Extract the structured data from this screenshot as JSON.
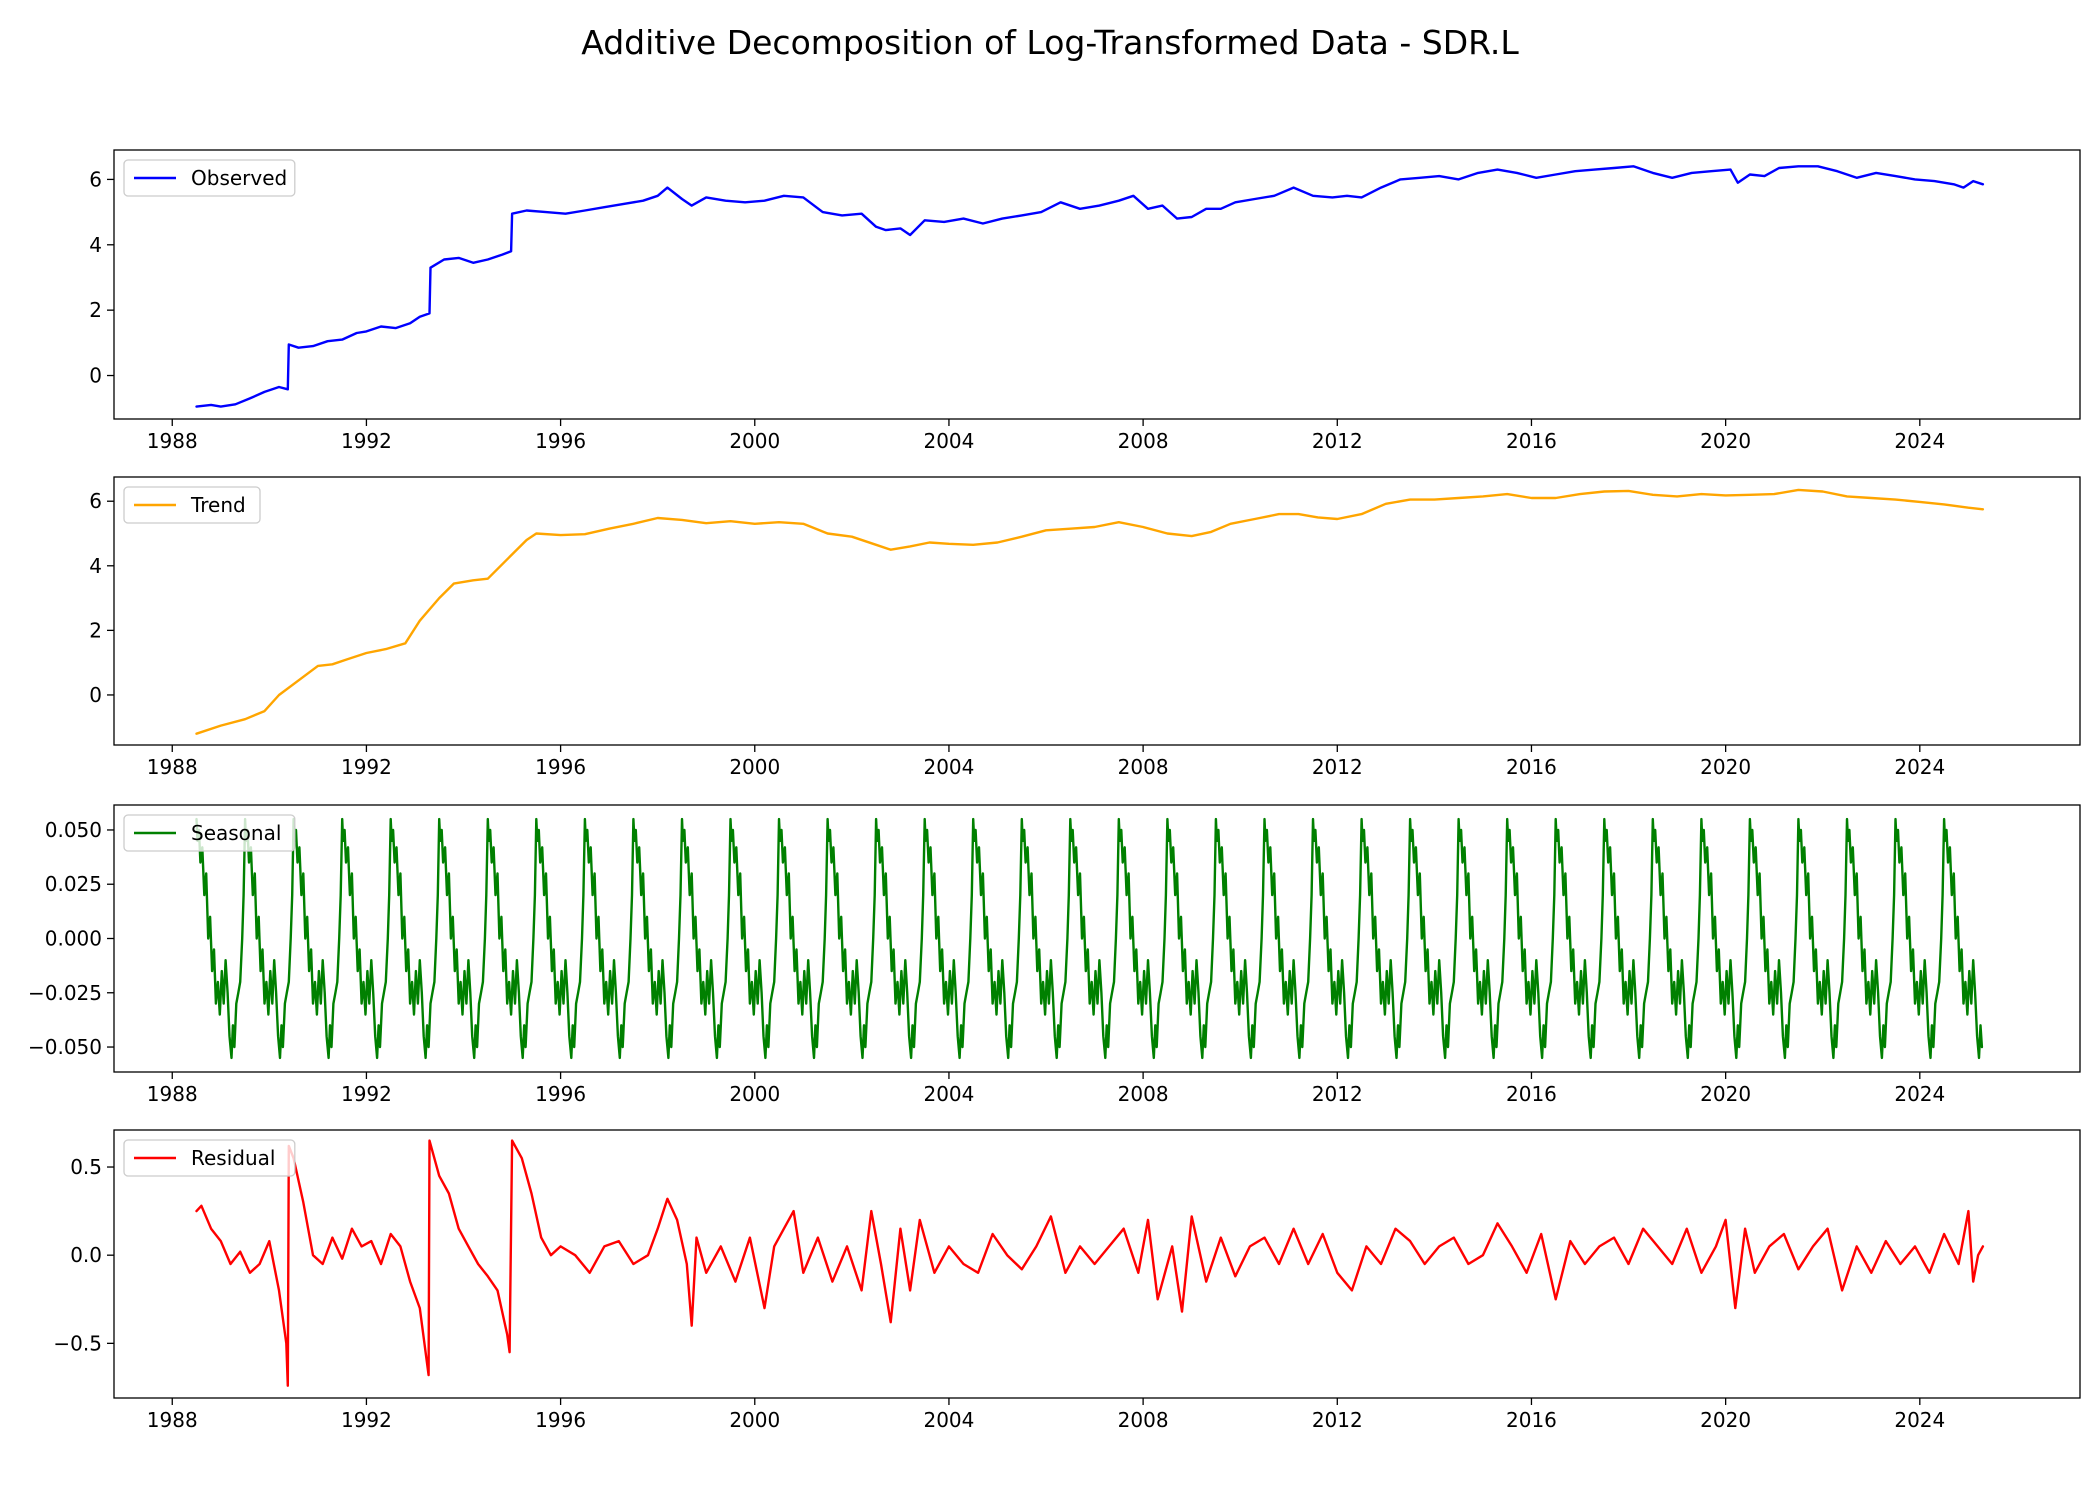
{
  "title": "Additive Decomposition of Log-Transformed Data - SDR.L",
  "chart_data": [
    {
      "type": "line",
      "key": "observed",
      "legend": "Observed",
      "legend_position": "upper left",
      "color": "#0000ff",
      "x_ticks": [
        "1988",
        "1992",
        "1996",
        "2000",
        "2004",
        "2008",
        "2012",
        "2016",
        "2020",
        "2024"
      ],
      "x_tick_values": [
        1988,
        1992,
        1996,
        2000,
        2004,
        2008,
        2012,
        2016,
        2020,
        2024
      ],
      "xlim": [
        1986.8,
        2027.3
      ],
      "y_ticks": [
        "0",
        "2",
        "4",
        "6"
      ],
      "y_tick_values": [
        0,
        2,
        4,
        6
      ],
      "ylim": [
        -1.33,
        6.9
      ],
      "x": [
        1988.5,
        1988.8,
        1989.0,
        1989.3,
        1989.6,
        1989.9,
        1990.2,
        1990.38,
        1990.4,
        1990.6,
        1990.9,
        1991.2,
        1991.5,
        1991.8,
        1992.0,
        1992.3,
        1992.6,
        1992.9,
        1993.1,
        1993.3,
        1993.32,
        1993.6,
        1993.9,
        1994.2,
        1994.5,
        1994.8,
        1994.98,
        1995.0,
        1995.3,
        1995.7,
        1996.1,
        1996.5,
        1996.9,
        1997.3,
        1997.7,
        1998.0,
        1998.2,
        1998.5,
        1998.7,
        1999.0,
        1999.4,
        1999.8,
        2000.2,
        2000.6,
        2001.0,
        2001.4,
        2001.8,
        2002.2,
        2002.5,
        2002.7,
        2003.0,
        2003.2,
        2003.5,
        2003.9,
        2004.3,
        2004.7,
        2005.1,
        2005.5,
        2005.9,
        2006.3,
        2006.7,
        2007.1,
        2007.5,
        2007.8,
        2008.1,
        2008.4,
        2008.7,
        2009.0,
        2009.3,
        2009.6,
        2009.9,
        2010.3,
        2010.7,
        2011.1,
        2011.5,
        2011.9,
        2012.2,
        2012.5,
        2012.9,
        2013.3,
        2013.7,
        2014.1,
        2014.5,
        2014.9,
        2015.3,
        2015.7,
        2016.1,
        2016.5,
        2016.9,
        2017.3,
        2017.7,
        2018.1,
        2018.5,
        2018.9,
        2019.3,
        2019.7,
        2020.1,
        2020.25,
        2020.5,
        2020.8,
        2021.1,
        2021.5,
        2021.9,
        2022.3,
        2022.7,
        2023.1,
        2023.5,
        2023.9,
        2024.3,
        2024.7,
        2024.9,
        2025.1,
        2025.3
      ],
      "y": [
        -0.95,
        -0.9,
        -0.95,
        -0.88,
        -0.7,
        -0.5,
        -0.35,
        -0.42,
        0.95,
        0.85,
        0.9,
        1.05,
        1.1,
        1.3,
        1.35,
        1.5,
        1.45,
        1.6,
        1.8,
        1.9,
        3.3,
        3.55,
        3.6,
        3.45,
        3.55,
        3.7,
        3.8,
        4.95,
        5.05,
        5.0,
        4.95,
        5.05,
        5.15,
        5.25,
        5.35,
        5.5,
        5.75,
        5.4,
        5.2,
        5.45,
        5.35,
        5.3,
        5.35,
        5.5,
        5.45,
        5.0,
        4.9,
        4.95,
        4.55,
        4.45,
        4.5,
        4.3,
        4.75,
        4.7,
        4.8,
        4.65,
        4.8,
        4.9,
        5.0,
        5.3,
        5.1,
        5.2,
        5.35,
        5.5,
        5.1,
        5.2,
        4.8,
        4.85,
        5.1,
        5.1,
        5.3,
        5.4,
        5.5,
        5.75,
        5.5,
        5.45,
        5.5,
        5.45,
        5.75,
        6.0,
        6.05,
        6.1,
        6.0,
        6.2,
        6.3,
        6.2,
        6.05,
        6.15,
        6.25,
        6.3,
        6.35,
        6.4,
        6.2,
        6.05,
        6.2,
        6.25,
        6.3,
        5.9,
        6.15,
        6.1,
        6.35,
        6.4,
        6.4,
        6.25,
        6.05,
        6.2,
        6.1,
        6.0,
        5.95,
        5.85,
        5.75,
        5.95,
        5.85
      ]
    },
    {
      "type": "line",
      "key": "trend",
      "legend": "Trend",
      "legend_position": "upper left",
      "color": "#ffa500",
      "x_ticks": [
        "1988",
        "1992",
        "1996",
        "2000",
        "2004",
        "2008",
        "2012",
        "2016",
        "2020",
        "2024"
      ],
      "x_tick_values": [
        1988,
        1992,
        1996,
        2000,
        2004,
        2008,
        2012,
        2016,
        2020,
        2024
      ],
      "xlim": [
        1986.8,
        2027.3
      ],
      "y_ticks": [
        "0",
        "2",
        "4",
        "6"
      ],
      "y_tick_values": [
        0,
        2,
        4,
        6
      ],
      "ylim": [
        -1.55,
        6.75
      ],
      "x": [
        1988.5,
        1989.0,
        1989.5,
        1989.9,
        1990.2,
        1990.6,
        1991.0,
        1991.3,
        1991.6,
        1992.0,
        1992.4,
        1992.8,
        1993.1,
        1993.5,
        1993.8,
        1994.2,
        1994.5,
        1994.9,
        1995.3,
        1995.5,
        1996.0,
        1996.5,
        1997.0,
        1997.5,
        1998.0,
        1998.5,
        1999.0,
        1999.5,
        2000.0,
        2000.5,
        2001.0,
        2001.5,
        2002.0,
        2002.5,
        2002.8,
        2003.2,
        2003.6,
        2004.0,
        2004.5,
        2005.0,
        2005.5,
        2006.0,
        2006.5,
        2007.0,
        2007.5,
        2008.0,
        2008.5,
        2009.0,
        2009.4,
        2009.8,
        2010.3,
        2010.8,
        2011.2,
        2011.6,
        2012.0,
        2012.5,
        2013.0,
        2013.5,
        2014.0,
        2014.5,
        2015.0,
        2015.5,
        2016.0,
        2016.5,
        2017.0,
        2017.5,
        2018.0,
        2018.5,
        2019.0,
        2019.5,
        2020.0,
        2020.5,
        2021.0,
        2021.5,
        2022.0,
        2022.5,
        2023.0,
        2023.5,
        2024.0,
        2024.5,
        2025.0,
        2025.3
      ],
      "y": [
        -1.2,
        -0.95,
        -0.75,
        -0.5,
        0.0,
        0.45,
        0.9,
        0.95,
        1.1,
        1.3,
        1.42,
        1.6,
        2.3,
        3.0,
        3.45,
        3.55,
        3.6,
        4.2,
        4.8,
        5.0,
        4.95,
        4.98,
        5.15,
        5.3,
        5.48,
        5.42,
        5.32,
        5.38,
        5.3,
        5.35,
        5.3,
        5.0,
        4.9,
        4.65,
        4.5,
        4.6,
        4.72,
        4.68,
        4.65,
        4.72,
        4.9,
        5.1,
        5.15,
        5.2,
        5.35,
        5.2,
        5.0,
        4.92,
        5.05,
        5.3,
        5.45,
        5.6,
        5.6,
        5.5,
        5.45,
        5.6,
        5.92,
        6.05,
        6.05,
        6.1,
        6.15,
        6.22,
        6.1,
        6.1,
        6.22,
        6.3,
        6.32,
        6.2,
        6.15,
        6.22,
        6.18,
        6.2,
        6.22,
        6.35,
        6.3,
        6.15,
        6.1,
        6.05,
        5.98,
        5.9,
        5.8,
        5.75
      ]
    },
    {
      "type": "line",
      "key": "seasonal",
      "legend": "Seasonal",
      "legend_position": "upper left",
      "color": "#008000",
      "x_ticks": [
        "1988",
        "1992",
        "1996",
        "2000",
        "2004",
        "2008",
        "2012",
        "2016",
        "2020",
        "2024"
      ],
      "x_tick_values": [
        1988,
        1992,
        1996,
        2000,
        2004,
        2008,
        2012,
        2016,
        2020,
        2024
      ],
      "xlim": [
        1986.8,
        2027.3
      ],
      "y_ticks": [
        "0.050",
        "0.025",
        "0.000",
        "−0.025",
        "−0.050"
      ],
      "y_tick_values": [
        0.05,
        0.025,
        0.0,
        -0.025,
        -0.05
      ],
      "ylim": [
        -0.0615,
        0.0615
      ],
      "period_years": 1.0,
      "start": 1988.5,
      "end": 2025.3,
      "cycle_phase": [
        0.0,
        0.02,
        0.05,
        0.08,
        0.12,
        0.16,
        0.2,
        0.24,
        0.28,
        0.32,
        0.36,
        0.4,
        0.44,
        0.48,
        0.52,
        0.56,
        0.6,
        0.64,
        0.68,
        0.72,
        0.75,
        0.78,
        0.82,
        0.86,
        0.9,
        0.94,
        0.97,
        1.0
      ],
      "cycle_values": [
        0.055,
        0.045,
        0.05,
        0.035,
        0.042,
        0.02,
        0.03,
        0.0,
        0.01,
        -0.015,
        -0.005,
        -0.03,
        -0.02,
        -0.035,
        -0.015,
        -0.03,
        -0.01,
        -0.025,
        -0.045,
        -0.055,
        -0.04,
        -0.05,
        -0.03,
        -0.025,
        -0.02,
        0.0,
        0.02,
        0.055
      ]
    },
    {
      "type": "line",
      "key": "residual",
      "legend": "Residual",
      "legend_position": "upper left",
      "color": "#ff0000",
      "x_ticks": [
        "1988",
        "1992",
        "1996",
        "2000",
        "2004",
        "2008",
        "2012",
        "2016",
        "2020",
        "2024"
      ],
      "x_tick_values": [
        1988,
        1992,
        1996,
        2000,
        2004,
        2008,
        2012,
        2016,
        2020,
        2024
      ],
      "xlim": [
        1986.8,
        2027.3
      ],
      "y_ticks": [
        "0.5",
        "0.0",
        "−0.5"
      ],
      "y_tick_values": [
        0.5,
        0.0,
        -0.5
      ],
      "ylim": [
        -0.81,
        0.71
      ],
      "x": [
        1988.5,
        1988.6,
        1988.8,
        1989.0,
        1989.2,
        1989.4,
        1989.6,
        1989.8,
        1990.0,
        1990.2,
        1990.35,
        1990.38,
        1990.4,
        1990.5,
        1990.7,
        1990.9,
        1991.1,
        1991.3,
        1991.5,
        1991.7,
        1991.9,
        1992.1,
        1992.3,
        1992.5,
        1992.7,
        1992.9,
        1993.1,
        1993.28,
        1993.3,
        1993.5,
        1993.7,
        1993.9,
        1994.1,
        1994.3,
        1994.5,
        1994.7,
        1994.9,
        1994.95,
        1995.0,
        1995.2,
        1995.4,
        1995.6,
        1995.8,
        1996.0,
        1996.3,
        1996.6,
        1996.9,
        1997.2,
        1997.5,
        1997.8,
        1998.0,
        1998.2,
        1998.4,
        1998.6,
        1998.7,
        1998.8,
        1999.0,
        1999.3,
        1999.6,
        1999.9,
        2000.2,
        2000.4,
        2000.6,
        2000.8,
        2001.0,
        2001.3,
        2001.6,
        2001.9,
        2002.2,
        2002.4,
        2002.6,
        2002.8,
        2003.0,
        2003.2,
        2003.4,
        2003.7,
        2004.0,
        2004.3,
        2004.6,
        2004.9,
        2005.2,
        2005.5,
        2005.8,
        2006.1,
        2006.4,
        2006.7,
        2007.0,
        2007.3,
        2007.6,
        2007.9,
        2008.1,
        2008.3,
        2008.6,
        2008.8,
        2009.0,
        2009.3,
        2009.6,
        2009.9,
        2010.2,
        2010.5,
        2010.8,
        2011.1,
        2011.4,
        2011.7,
        2012.0,
        2012.3,
        2012.6,
        2012.9,
        2013.2,
        2013.5,
        2013.8,
        2014.1,
        2014.4,
        2014.7,
        2015.0,
        2015.3,
        2015.6,
        2015.9,
        2016.2,
        2016.5,
        2016.8,
        2017.1,
        2017.4,
        2017.7,
        2018.0,
        2018.3,
        2018.6,
        2018.9,
        2019.2,
        2019.5,
        2019.8,
        2020.0,
        2020.2,
        2020.4,
        2020.6,
        2020.9,
        2021.2,
        2021.5,
        2021.8,
        2022.1,
        2022.4,
        2022.7,
        2023.0,
        2023.3,
        2023.6,
        2023.9,
        2024.2,
        2024.5,
        2024.8,
        2025.0,
        2025.1,
        2025.2,
        2025.3
      ],
      "y": [
        0.25,
        0.28,
        0.15,
        0.08,
        -0.05,
        0.02,
        -0.1,
        -0.05,
        0.08,
        -0.2,
        -0.5,
        -0.74,
        0.62,
        0.55,
        0.3,
        0.0,
        -0.05,
        0.1,
        -0.02,
        0.15,
        0.05,
        0.08,
        -0.05,
        0.12,
        0.05,
        -0.15,
        -0.3,
        -0.68,
        0.65,
        0.45,
        0.35,
        0.15,
        0.05,
        -0.05,
        -0.12,
        -0.2,
        -0.45,
        -0.55,
        0.65,
        0.55,
        0.35,
        0.1,
        0.0,
        0.05,
        0.0,
        -0.1,
        0.05,
        0.08,
        -0.05,
        0.0,
        0.15,
        0.32,
        0.2,
        -0.05,
        -0.4,
        0.1,
        -0.1,
        0.05,
        -0.15,
        0.1,
        -0.3,
        0.05,
        0.15,
        0.25,
        -0.1,
        0.1,
        -0.15,
        0.05,
        -0.2,
        0.25,
        -0.05,
        -0.38,
        0.15,
        -0.2,
        0.2,
        -0.1,
        0.05,
        -0.05,
        -0.1,
        0.12,
        0.0,
        -0.08,
        0.05,
        0.22,
        -0.1,
        0.05,
        -0.05,
        0.05,
        0.15,
        -0.1,
        0.2,
        -0.25,
        0.05,
        -0.32,
        0.22,
        -0.15,
        0.1,
        -0.12,
        0.05,
        0.1,
        -0.05,
        0.15,
        -0.05,
        0.12,
        -0.1,
        -0.2,
        0.05,
        -0.05,
        0.15,
        0.08,
        -0.05,
        0.05,
        0.1,
        -0.05,
        0.0,
        0.18,
        0.05,
        -0.1,
        0.12,
        -0.25,
        0.08,
        -0.05,
        0.05,
        0.1,
        -0.05,
        0.15,
        0.05,
        -0.05,
        0.15,
        -0.1,
        0.05,
        0.2,
        -0.3,
        0.15,
        -0.1,
        0.05,
        0.12,
        -0.08,
        0.05,
        0.15,
        -0.2,
        0.05,
        -0.1,
        0.08,
        -0.05,
        0.05,
        -0.1,
        0.12,
        -0.05,
        0.25,
        -0.15,
        0.0,
        0.05
      ]
    }
  ]
}
